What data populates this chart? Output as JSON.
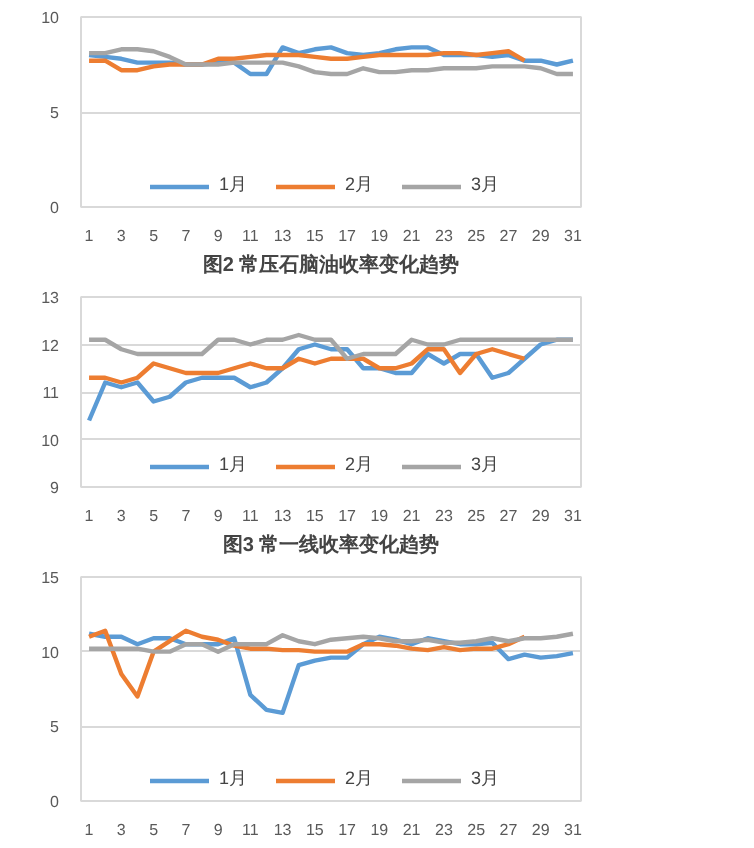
{
  "chart_data": [
    {
      "type": "line",
      "title": "图2 常压石脑油收率变化趋势",
      "x": [
        1,
        2,
        3,
        4,
        5,
        6,
        7,
        8,
        9,
        10,
        11,
        12,
        13,
        14,
        15,
        16,
        17,
        18,
        19,
        20,
        21,
        22,
        23,
        24,
        25,
        26,
        27,
        28,
        29,
        30,
        31
      ],
      "xlim": [
        0.5,
        31.5
      ],
      "xticks": [
        1,
        3,
        5,
        7,
        9,
        11,
        13,
        15,
        17,
        19,
        21,
        23,
        25,
        27,
        29,
        31
      ],
      "ylim": [
        0,
        10
      ],
      "yticks": [
        0,
        5,
        10
      ],
      "grid": "y",
      "legend": "bottom",
      "marker": "none",
      "line_style": "solid",
      "series": [
        {
          "name": "1月",
          "color": "#5b9bd5",
          "values": [
            8.0,
            7.9,
            7.8,
            7.6,
            7.6,
            7.6,
            7.5,
            7.5,
            7.6,
            7.6,
            7.0,
            7.0,
            8.4,
            8.1,
            8.3,
            8.4,
            8.1,
            8.0,
            8.1,
            8.3,
            8.4,
            8.4,
            8.0,
            8.0,
            8.0,
            7.9,
            8.0,
            7.7,
            7.7,
            7.5,
            7.7
          ]
        },
        {
          "name": "2月",
          "color": "#ed7d31",
          "values": [
            7.7,
            7.7,
            7.2,
            7.2,
            7.4,
            7.5,
            7.5,
            7.5,
            7.8,
            7.8,
            7.9,
            8.0,
            8.0,
            8.0,
            7.9,
            7.8,
            7.8,
            7.9,
            8.0,
            8.0,
            8.0,
            8.0,
            8.1,
            8.1,
            8.0,
            8.1,
            8.2,
            7.7,
            null,
            null,
            null
          ]
        },
        {
          "name": "3月",
          "color": "#a5a5a5",
          "values": [
            8.1,
            8.1,
            8.3,
            8.3,
            8.2,
            7.9,
            7.5,
            7.5,
            7.5,
            7.6,
            7.6,
            7.6,
            7.6,
            7.4,
            7.1,
            7.0,
            7.0,
            7.3,
            7.1,
            7.1,
            7.2,
            7.2,
            7.3,
            7.3,
            7.3,
            7.4,
            7.4,
            7.4,
            7.3,
            7.0,
            7.0
          ]
        }
      ]
    },
    {
      "type": "line",
      "title": "图3 常一线收率变化趋势",
      "x": [
        1,
        2,
        3,
        4,
        5,
        6,
        7,
        8,
        9,
        10,
        11,
        12,
        13,
        14,
        15,
        16,
        17,
        18,
        19,
        20,
        21,
        22,
        23,
        24,
        25,
        26,
        27,
        28,
        29,
        30,
        31
      ],
      "xlim": [
        0.5,
        31.5
      ],
      "xticks": [
        1,
        3,
        5,
        7,
        9,
        11,
        13,
        15,
        17,
        19,
        21,
        23,
        25,
        27,
        29,
        31
      ],
      "ylim": [
        9,
        13
      ],
      "yticks": [
        9,
        10,
        11,
        12,
        13
      ],
      "grid": "y",
      "legend": "bottom",
      "marker": "none",
      "line_style": "solid",
      "series": [
        {
          "name": "1月",
          "color": "#5b9bd5",
          "values": [
            10.4,
            11.2,
            11.1,
            11.2,
            10.8,
            10.9,
            11.2,
            11.3,
            11.3,
            11.3,
            11.1,
            11.2,
            11.5,
            11.9,
            12.0,
            11.9,
            11.9,
            11.5,
            11.5,
            11.4,
            11.4,
            11.8,
            11.6,
            11.8,
            11.8,
            11.3,
            11.4,
            11.7,
            12.0,
            12.1,
            12.1
          ]
        },
        {
          "name": "2月",
          "color": "#ed7d31",
          "values": [
            11.3,
            11.3,
            11.2,
            11.3,
            11.6,
            11.5,
            11.4,
            11.4,
            11.4,
            11.5,
            11.6,
            11.5,
            11.5,
            11.7,
            11.6,
            11.7,
            11.7,
            11.7,
            11.5,
            11.5,
            11.6,
            11.9,
            11.9,
            11.4,
            11.8,
            11.9,
            11.8,
            11.7,
            null,
            null,
            null
          ]
        },
        {
          "name": "3月",
          "color": "#a5a5a5",
          "values": [
            12.1,
            12.1,
            11.9,
            11.8,
            11.8,
            11.8,
            11.8,
            11.8,
            12.1,
            12.1,
            12.0,
            12.1,
            12.1,
            12.2,
            12.1,
            12.1,
            11.7,
            11.8,
            11.8,
            11.8,
            12.1,
            12.0,
            12.0,
            12.1,
            12.1,
            12.1,
            12.1,
            12.1,
            12.1,
            12.1,
            12.1
          ]
        }
      ]
    },
    {
      "type": "line",
      "x": [
        1,
        2,
        3,
        4,
        5,
        6,
        7,
        8,
        9,
        10,
        11,
        12,
        13,
        14,
        15,
        16,
        17,
        18,
        19,
        20,
        21,
        22,
        23,
        24,
        25,
        26,
        27,
        28,
        29,
        30,
        31
      ],
      "xlim": [
        0.5,
        31.5
      ],
      "xticks": [
        1,
        3,
        5,
        7,
        9,
        11,
        13,
        15,
        17,
        19,
        21,
        23,
        25,
        27,
        29,
        31
      ],
      "ylim": [
        0,
        15
      ],
      "yticks": [
        0,
        5,
        10,
        15
      ],
      "grid": "y",
      "legend": "bottom",
      "marker": "none",
      "line_style": "solid",
      "series": [
        {
          "name": "1月",
          "color": "#5b9bd5",
          "values": [
            11.2,
            11.0,
            11.0,
            10.5,
            10.9,
            10.9,
            10.5,
            10.5,
            10.5,
            10.9,
            7.1,
            6.1,
            5.9,
            9.1,
            9.4,
            9.6,
            9.6,
            10.5,
            11.0,
            10.8,
            10.5,
            10.9,
            10.7,
            10.5,
            10.5,
            10.6,
            9.5,
            9.8,
            9.6,
            9.7,
            9.9
          ]
        },
        {
          "name": "2月",
          "color": "#ed7d31",
          "values": [
            11.0,
            11.4,
            8.5,
            7.0,
            10.0,
            10.7,
            11.4,
            11.0,
            10.8,
            10.4,
            10.2,
            10.2,
            10.1,
            10.1,
            10.0,
            10.0,
            10.0,
            10.5,
            10.5,
            10.4,
            10.2,
            10.1,
            10.3,
            10.1,
            10.2,
            10.2,
            10.5,
            11.0,
            null,
            null,
            null
          ]
        },
        {
          "name": "3月",
          "color": "#a5a5a5",
          "values": [
            10.2,
            10.2,
            10.2,
            10.2,
            10.0,
            10.0,
            10.5,
            10.5,
            10.0,
            10.5,
            10.5,
            10.5,
            11.1,
            10.7,
            10.5,
            10.8,
            10.9,
            11.0,
            10.9,
            10.7,
            10.7,
            10.8,
            10.6,
            10.6,
            10.7,
            10.9,
            10.7,
            10.9,
            10.9,
            11.0,
            11.2
          ]
        }
      ]
    }
  ]
}
